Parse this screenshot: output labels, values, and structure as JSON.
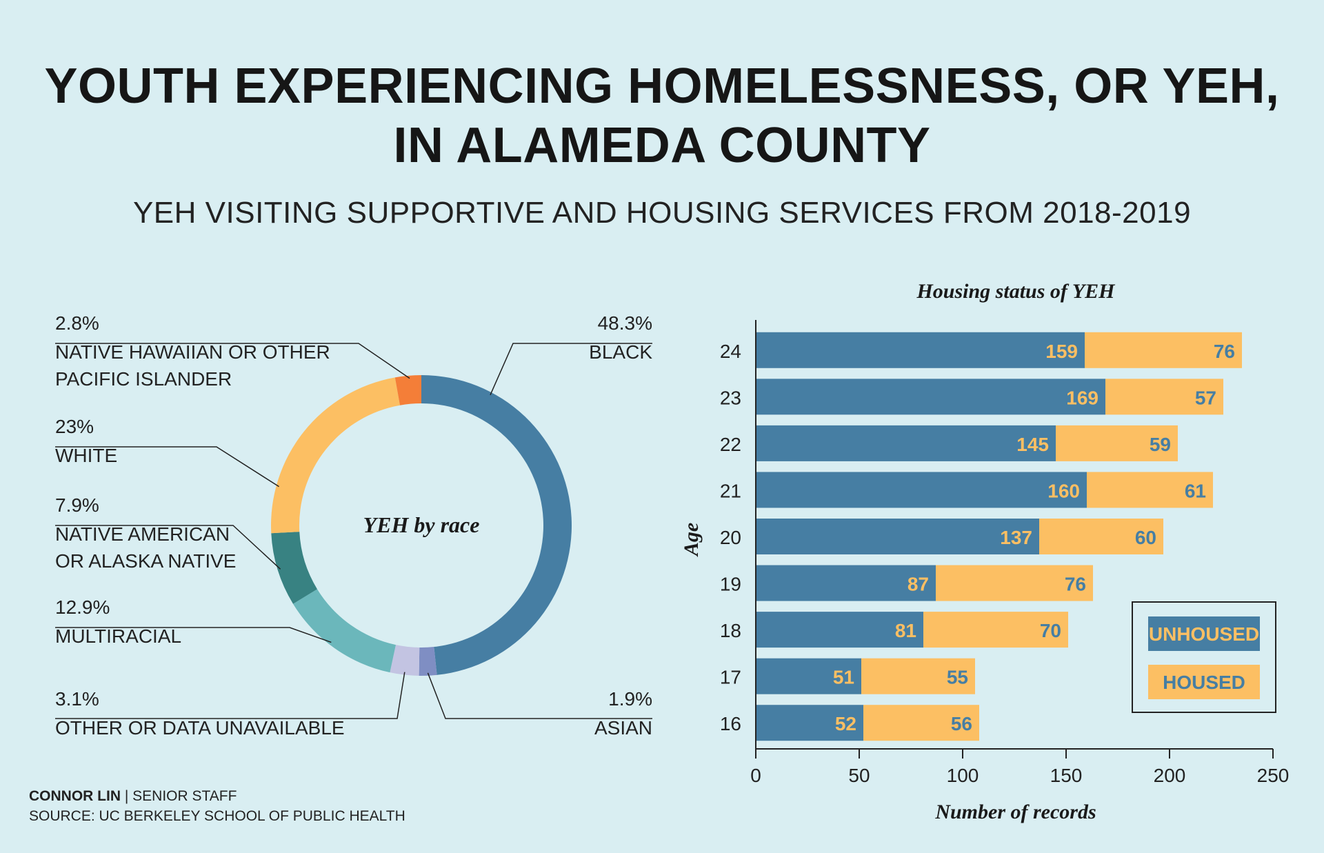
{
  "header": {
    "title_line1": "YOUTH EXPERIENCING HOMELESSNESS, OR YEH,",
    "title_line2": "IN ALAMEDA COUNTY",
    "subtitle": "YEH VISITING SUPPORTIVE AND HOUSING SERVICES FROM 2018-2019"
  },
  "credit": {
    "author": "CONNOR LIN",
    "role": "| SENIOR STAFF",
    "source": "SOURCE: UC BERKELEY SCHOOL OF PUBLIC HEALTH"
  },
  "colors": {
    "unhoused": "#467ea3",
    "housed": "#fcbf63",
    "background": "#d9eef2"
  },
  "chart_data": [
    {
      "type": "pie",
      "title": "YEH by race",
      "slices": [
        {
          "label_lines": [
            "BLACK"
          ],
          "pct_label": "48.3%",
          "value": 48.3,
          "color": "#467ea3"
        },
        {
          "label_lines": [
            "ASIAN"
          ],
          "pct_label": "1.9%",
          "value": 1.9,
          "color": "#7f8ec3"
        },
        {
          "label_lines": [
            "OTHER OR DATA UNAVAILABLE"
          ],
          "pct_label": "3.1%",
          "value": 3.1,
          "color": "#c3c4e2"
        },
        {
          "label_lines": [
            "MULTIRACIAL"
          ],
          "pct_label": "12.9%",
          "value": 12.9,
          "color": "#6bb7bb"
        },
        {
          "label_lines": [
            "NATIVE AMERICAN",
            "OR ALASKA NATIVE"
          ],
          "pct_label": "7.9%",
          "value": 7.9,
          "color": "#388282"
        },
        {
          "label_lines": [
            "WHITE"
          ],
          "pct_label": "23%",
          "value": 23,
          "color": "#fcbf63"
        },
        {
          "label_lines": [
            "NATIVE HAWAIIAN OR OTHER",
            "PACIFIC ISLANDER"
          ],
          "pct_label": "2.8%",
          "value": 2.8,
          "color": "#f47e38"
        }
      ]
    },
    {
      "type": "bar",
      "orientation": "horizontal",
      "stacked": true,
      "title": "Housing status of YEH",
      "xlabel": "Number of records",
      "ylabel": "Age",
      "xlim": [
        0,
        250
      ],
      "xticks": [
        0,
        50,
        100,
        150,
        200,
        250
      ],
      "categories": [
        "24",
        "23",
        "22",
        "21",
        "20",
        "19",
        "18",
        "17",
        "16"
      ],
      "series": [
        {
          "name": "UNHOUSED",
          "values": [
            159,
            169,
            145,
            160,
            137,
            87,
            81,
            51,
            52
          ]
        },
        {
          "name": "HOUSED",
          "values": [
            76,
            57,
            59,
            61,
            60,
            76,
            70,
            55,
            56
          ]
        }
      ],
      "legend_position": "bottom-right",
      "grid": false
    }
  ]
}
